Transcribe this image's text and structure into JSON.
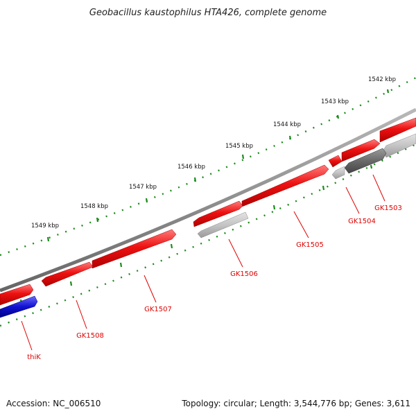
{
  "title": "Geobacillus kaustophilus HTA426, complete genome",
  "footer": {
    "accession": "Accession: NC_006510",
    "summary": "Topology: circular; Length: 3,544,776 bp; Genes: 3,611"
  },
  "colors": {
    "backbone": "#808080",
    "forward_gene": "#ee1111",
    "reverse_gene_dark": "#6a6a6a",
    "reverse_gene_light": "#bdbdbd",
    "highlight_gene": "#1010d0",
    "ticks": "#1a8a1a",
    "label": "#e00000"
  },
  "kbp_labels": [
    "1542 kbp",
    "1543 kbp",
    "1544 kbp",
    "1545 kbp",
    "1546 kbp",
    "1547 kbp",
    "1548 kbp",
    "1549 kbp"
  ],
  "genes": [
    "GK1503",
    "GK1504",
    "GK1505",
    "GK1506",
    "GK1507",
    "GK1508",
    "thiK"
  ]
}
